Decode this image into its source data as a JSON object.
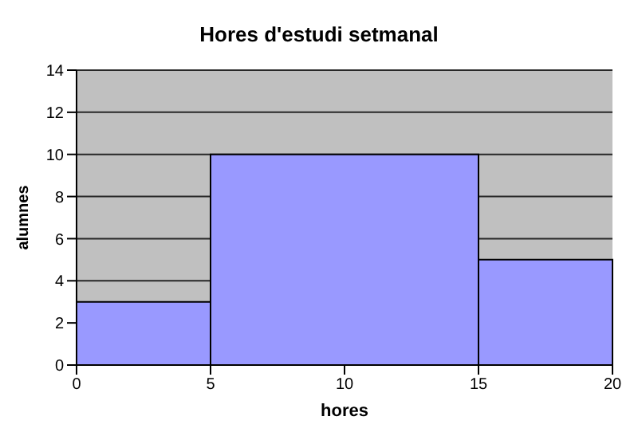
{
  "chart_data": {
    "type": "histogram",
    "title": "Hores d'estudi setmanal",
    "xlabel": "hores",
    "ylabel": "alumnes",
    "bins": [
      0,
      5,
      15,
      20
    ],
    "values": [
      3,
      10,
      5
    ],
    "color": "#9999ff",
    "xlim": [
      0,
      20
    ],
    "xticks": [
      0,
      5,
      10,
      15,
      20
    ],
    "ylim": [
      0,
      14
    ],
    "yticks": [
      0,
      2,
      4,
      6,
      8,
      10,
      12,
      14
    ],
    "grid": "y"
  }
}
